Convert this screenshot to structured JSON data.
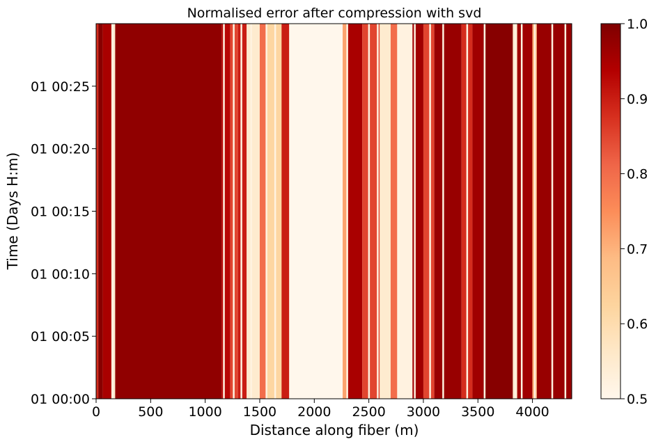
{
  "chart_data": {
    "type": "heatmap",
    "title": "Normalised error after compression with svd",
    "xlabel": "Distance along fiber (m)",
    "ylabel": "Time (Days H:m)",
    "xlim": [
      0,
      4360
    ],
    "ylim_minutes": [
      0,
      30
    ],
    "x_ticks": [
      0,
      500,
      1000,
      1500,
      2000,
      2500,
      3000,
      3500,
      4000
    ],
    "x_tick_labels": [
      "0",
      "500",
      "1000",
      "1500",
      "2000",
      "2500",
      "3000",
      "3500",
      "4000"
    ],
    "y_ticks_minutes": [
      0,
      5,
      10,
      15,
      20,
      25
    ],
    "y_tick_labels": [
      "01 00:00",
      "01 00:05",
      "01 00:10",
      "01 00:15",
      "01 00:20",
      "01 00:25"
    ],
    "colorbar": {
      "colormap": "OrRd",
      "range": [
        0.5,
        1.0
      ],
      "ticks": [
        0.5,
        0.6,
        0.7,
        0.8,
        0.9,
        1.0
      ],
      "tick_labels": [
        "0.5",
        "0.6",
        "0.7",
        "0.8",
        "0.9",
        "1.0"
      ]
    },
    "bands": [
      {
        "x0": 0,
        "x1": 20,
        "value": 0.88
      },
      {
        "x0": 20,
        "x1": 60,
        "value": 0.99
      },
      {
        "x0": 60,
        "x1": 140,
        "value": 0.95
      },
      {
        "x0": 140,
        "x1": 175,
        "value": 0.55
      },
      {
        "x0": 175,
        "x1": 1150,
        "value": 0.98
      },
      {
        "x0": 1150,
        "x1": 1230,
        "value": 0.93
      },
      {
        "x0": 1230,
        "x1": 1300,
        "value": 0.85
      },
      {
        "x0": 1300,
        "x1": 1380,
        "value": 0.9
      },
      {
        "x0": 1380,
        "x1": 1500,
        "value": 0.55
      },
      {
        "x0": 1500,
        "x1": 1560,
        "value": 0.8
      },
      {
        "x0": 1560,
        "x1": 1700,
        "value": 0.62
      },
      {
        "x0": 1700,
        "x1": 1770,
        "value": 0.9
      },
      {
        "x0": 1770,
        "x1": 2260,
        "value": 0.5
      },
      {
        "x0": 2260,
        "x1": 2310,
        "value": 0.72
      },
      {
        "x0": 2310,
        "x1": 2440,
        "value": 0.95
      },
      {
        "x0": 2440,
        "x1": 2600,
        "value": 0.85
      },
      {
        "x0": 2600,
        "x1": 2700,
        "value": 0.55
      },
      {
        "x0": 2700,
        "x1": 2760,
        "value": 0.8
      },
      {
        "x0": 2760,
        "x1": 2900,
        "value": 0.52
      },
      {
        "x0": 2900,
        "x1": 3000,
        "value": 0.96
      },
      {
        "x0": 3000,
        "x1": 3100,
        "value": 0.85
      },
      {
        "x0": 3100,
        "x1": 3350,
        "value": 0.97
      },
      {
        "x0": 3350,
        "x1": 3450,
        "value": 0.88
      },
      {
        "x0": 3450,
        "x1": 3550,
        "value": 0.96
      },
      {
        "x0": 3550,
        "x1": 3820,
        "value": 0.99
      },
      {
        "x0": 3820,
        "x1": 3860,
        "value": 0.55
      },
      {
        "x0": 3860,
        "x1": 4000,
        "value": 0.96
      },
      {
        "x0": 4000,
        "x1": 4040,
        "value": 0.7
      },
      {
        "x0": 4040,
        "x1": 4360,
        "value": 0.97
      }
    ],
    "light_stripes_x": [
      150,
      1170,
      1260,
      1330,
      1420,
      1560,
      1640,
      2300,
      2500,
      2580,
      2820,
      2920,
      3060,
      3180,
      3400,
      3560,
      3840,
      3900,
      4020,
      4180,
      4300
    ]
  }
}
